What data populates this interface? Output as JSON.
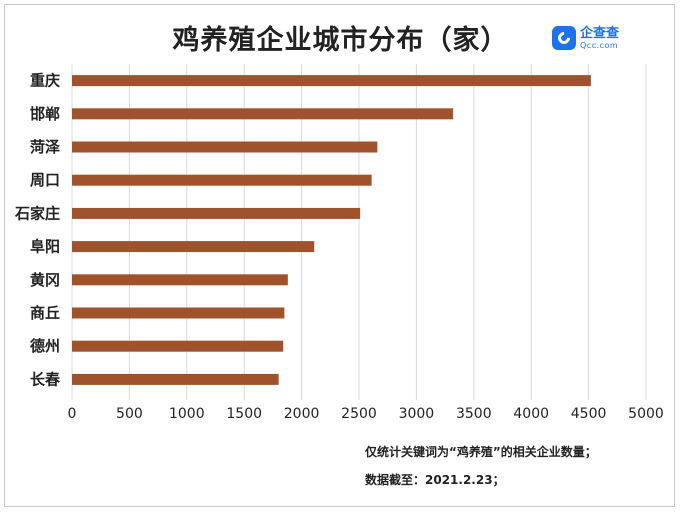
{
  "title": "鸡养殖企业城市分布（家）",
  "logo": {
    "icon": "qcc-logo-icon",
    "name": "企查查",
    "sub": "Qcc.com"
  },
  "notes": {
    "line1": "仅统计关键词为“鸡养殖”的相关企业数量；",
    "line2": "数据截至：2021.2.23；"
  },
  "colors": {
    "bar": "#a0522d",
    "grid": "#d9d9d9",
    "text": "#222222"
  },
  "chart_data": {
    "type": "bar",
    "orientation": "horizontal",
    "title": "鸡养殖企业城市分布（家）",
    "categories": [
      "重庆",
      "邯郸",
      "菏泽",
      "周口",
      "石家庄",
      "阜阳",
      "黄冈",
      "商丘",
      "德州",
      "长春"
    ],
    "values": [
      4520,
      3320,
      2660,
      2610,
      2510,
      2110,
      1880,
      1850,
      1840,
      1800
    ],
    "xlim": [
      0,
      5000
    ],
    "xticks": [
      0,
      500,
      1000,
      1500,
      2000,
      2500,
      3000,
      3500,
      4000,
      4500,
      5000
    ],
    "grid": "vertical",
    "xlabel": "",
    "ylabel": ""
  }
}
